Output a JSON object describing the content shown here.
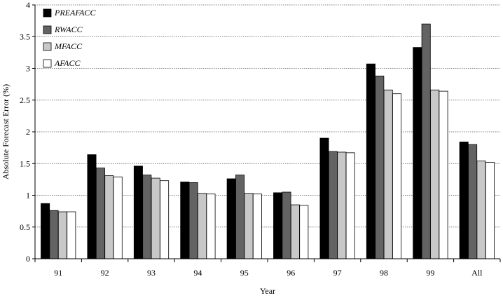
{
  "chart_data": {
    "type": "bar",
    "title": "",
    "xlabel": "Year",
    "ylabel": "Absolute Forecast Error (%)",
    "ylim": [
      0,
      4
    ],
    "yticks": [
      "0",
      "0.5",
      "1",
      "1.5",
      "2",
      "2.5",
      "3",
      "3.5",
      "4"
    ],
    "grid": "horizontal dotted",
    "legend_position": "top-left",
    "categories": [
      "91",
      "92",
      "93",
      "94",
      "95",
      "96",
      "97",
      "98",
      "99",
      "All"
    ],
    "series": [
      {
        "name": "PREAFACC",
        "color": "#000000",
        "values": [
          0.87,
          1.64,
          1.46,
          1.21,
          1.26,
          1.04,
          1.9,
          3.07,
          3.33,
          1.84
        ]
      },
      {
        "name": "RWACC",
        "color": "#636363",
        "values": [
          0.76,
          1.43,
          1.32,
          1.2,
          1.32,
          1.05,
          1.69,
          2.88,
          3.7,
          1.8
        ]
      },
      {
        "name": "MFACC",
        "color": "#c8c8c8",
        "values": [
          0.74,
          1.31,
          1.27,
          1.03,
          1.03,
          0.85,
          1.68,
          2.66,
          2.66,
          1.54
        ]
      },
      {
        "name": "AFACC",
        "color": "#ffffff",
        "values": [
          0.74,
          1.29,
          1.23,
          1.02,
          1.02,
          0.84,
          1.67,
          2.6,
          2.64,
          1.52
        ]
      }
    ]
  }
}
